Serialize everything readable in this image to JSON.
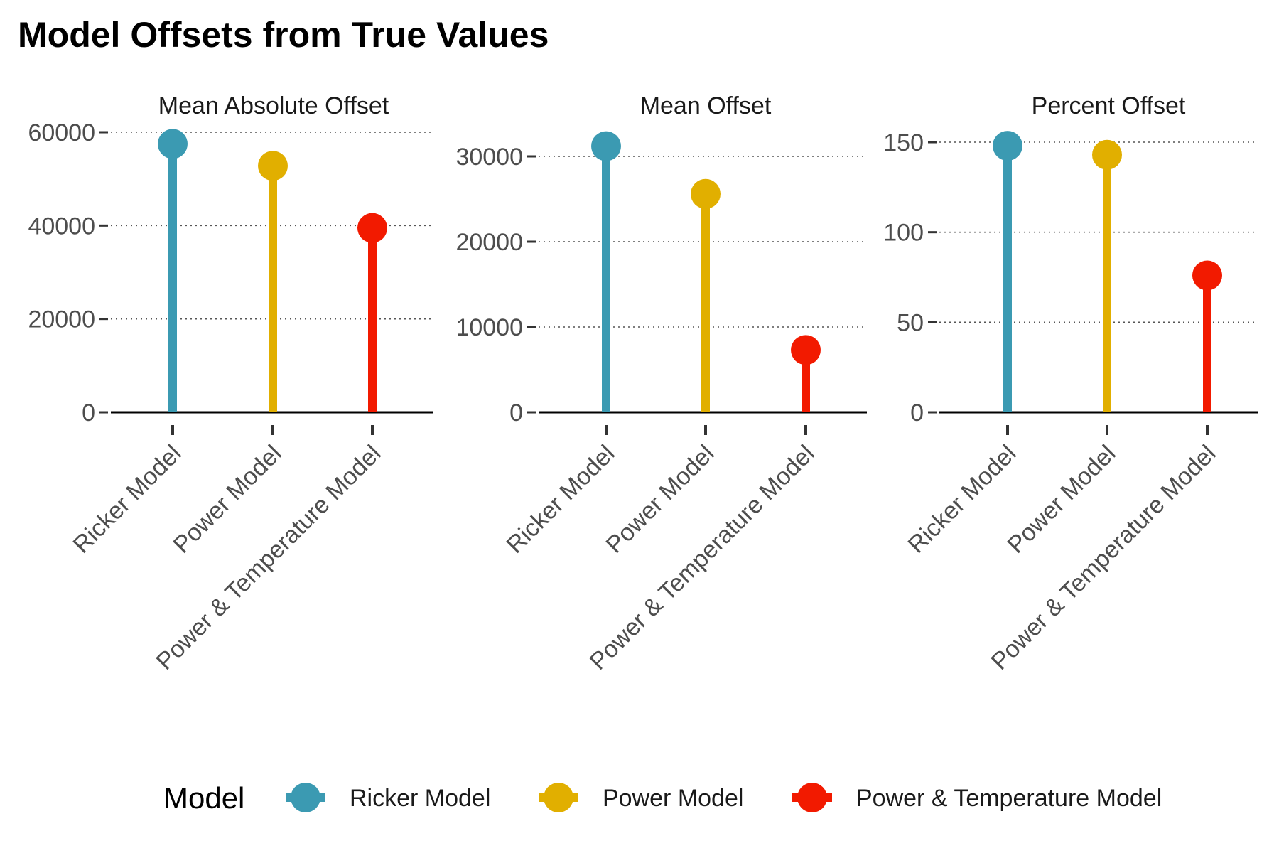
{
  "chart_data": {
    "type": "lollipop",
    "title": "Model Offsets from True Values",
    "categories": [
      "Ricker Model",
      "Power Model",
      "Power & Temperature Model"
    ],
    "colors": {
      "Ricker Model": "#3B9AB2",
      "Power Model": "#E1AF00",
      "Power & Temperature Model": "#F21A00"
    },
    "grid": "major y, dotted",
    "legend": {
      "title": "Model",
      "position": "bottom",
      "entries": [
        "Ricker Model",
        "Power Model",
        "Power & Temperature Model"
      ]
    },
    "panels": [
      {
        "title": "Mean Absolute Offset",
        "values": [
          57500,
          52800,
          39500
        ],
        "ylim": [
          0,
          60000
        ],
        "yticks": [
          0,
          20000,
          40000,
          60000
        ]
      },
      {
        "title": "Mean Offset",
        "values": [
          31200,
          25600,
          7300
        ],
        "ylim": [
          0,
          30000
        ],
        "yticks": [
          0,
          10000,
          20000,
          30000
        ]
      },
      {
        "title": "Percent Offset",
        "values": [
          148,
          143,
          76
        ],
        "ylim": [
          0,
          150
        ],
        "yticks": [
          0,
          50,
          100,
          150
        ]
      }
    ]
  }
}
